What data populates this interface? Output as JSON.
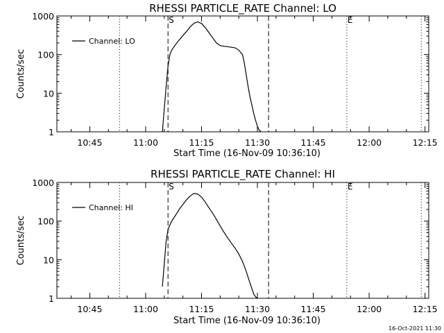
{
  "chart_data": [
    {
      "type": "line",
      "title": "RHESSI PARTICLE_RATE Channel: LO",
      "xlabel": "Start Time (16-Nov-09 10:36:10)",
      "ylabel": "Counts/sec",
      "yscale": "log",
      "ylim": [
        1,
        1000
      ],
      "xlim": [
        "10:36:10",
        "12:16:00"
      ],
      "x_ticks": [
        "10:45",
        "11:00",
        "11:15",
        "11:30",
        "11:45",
        "12:00",
        "12:15"
      ],
      "y_ticks": [
        "1",
        "10",
        "100",
        "1000"
      ],
      "legend": {
        "position": "top-left",
        "entries": [
          "Channel: LO"
        ]
      },
      "markers": [
        {
          "label": "S",
          "time": "11:06:00",
          "style": "dashed"
        },
        {
          "label": "",
          "time": "11:33:00",
          "style": "dashed"
        },
        {
          "label": "E",
          "time": "11:54:00",
          "style": "dotted"
        }
      ],
      "night_boundaries": [
        {
          "time": "10:53:00",
          "style": "dotted"
        },
        {
          "time": "12:14:00",
          "style": "dotted"
        }
      ],
      "series": [
        {
          "name": "Channel: LO",
          "x": [
            "11:04:30",
            "11:05:00",
            "11:05:30",
            "11:06:00",
            "11:06:30",
            "11:07:00",
            "11:08:00",
            "11:09:00",
            "11:10:00",
            "11:11:00",
            "11:12:00",
            "11:13:00",
            "11:14:00",
            "11:15:00",
            "11:16:00",
            "11:17:00",
            "11:18:00",
            "11:19:00",
            "11:20:00",
            "11:22:00",
            "11:24:00",
            "11:25:00",
            "11:26:00",
            "11:26:30",
            "11:27:00",
            "11:27:30",
            "11:28:00",
            "11:28:30",
            "11:29:00",
            "11:29:30",
            "11:30:00",
            "11:30:30",
            "11:31:00"
          ],
          "y": [
            1,
            4,
            15,
            50,
            100,
            130,
            180,
            240,
            310,
            400,
            530,
            650,
            700,
            640,
            500,
            370,
            270,
            200,
            170,
            160,
            150,
            130,
            100,
            60,
            30,
            15,
            8,
            5,
            3,
            2,
            1.4,
            1.1,
            1
          ]
        }
      ]
    },
    {
      "type": "line",
      "title": "RHESSI PARTICLE_RATE Channel: HI",
      "xlabel": "Start Time (16-Nov-09 10:36:10)",
      "ylabel": "Counts/sec",
      "yscale": "log",
      "ylim": [
        1,
        1000
      ],
      "xlim": [
        "10:36:10",
        "12:16:00"
      ],
      "x_ticks": [
        "10:45",
        "11:00",
        "11:15",
        "11:30",
        "11:45",
        "12:00",
        "12:15"
      ],
      "y_ticks": [
        "1",
        "10",
        "100",
        "1000"
      ],
      "legend": {
        "position": "top-left",
        "entries": [
          "Channel: HI"
        ]
      },
      "markers": [
        {
          "label": "S",
          "time": "11:06:00",
          "style": "dashed"
        },
        {
          "label": "",
          "time": "11:33:00",
          "style": "dashed"
        },
        {
          "label": "E",
          "time": "11:54:00",
          "style": "dotted"
        }
      ],
      "night_boundaries": [
        {
          "time": "10:53:00",
          "style": "dotted"
        },
        {
          "time": "12:14:00",
          "style": "dotted"
        }
      ],
      "series": [
        {
          "name": "Channel: HI",
          "x": [
            "11:04:30",
            "11:05:00",
            "11:05:30",
            "11:06:00",
            "11:06:30",
            "11:07:00",
            "11:08:00",
            "11:09:00",
            "11:10:00",
            "11:11:00",
            "11:12:00",
            "11:13:00",
            "11:14:00",
            "11:15:00",
            "11:16:00",
            "11:17:00",
            "11:18:00",
            "11:19:00",
            "11:20:00",
            "11:21:00",
            "11:22:00",
            "11:23:00",
            "11:24:00",
            "11:25:00",
            "11:26:00",
            "11:27:00",
            "11:27:30",
            "11:28:00",
            "11:28:30",
            "11:29:00",
            "11:29:30",
            "11:30:00"
          ],
          "y": [
            2,
            8,
            30,
            60,
            80,
            100,
            140,
            200,
            270,
            360,
            450,
            520,
            500,
            420,
            310,
            220,
            160,
            110,
            75,
            52,
            37,
            27,
            20,
            14,
            9,
            5,
            3.5,
            2.5,
            1.8,
            1.3,
            1.1,
            1
          ]
        }
      ]
    }
  ],
  "footer": {
    "timestamp": "16-Oct-2021 11:30"
  }
}
